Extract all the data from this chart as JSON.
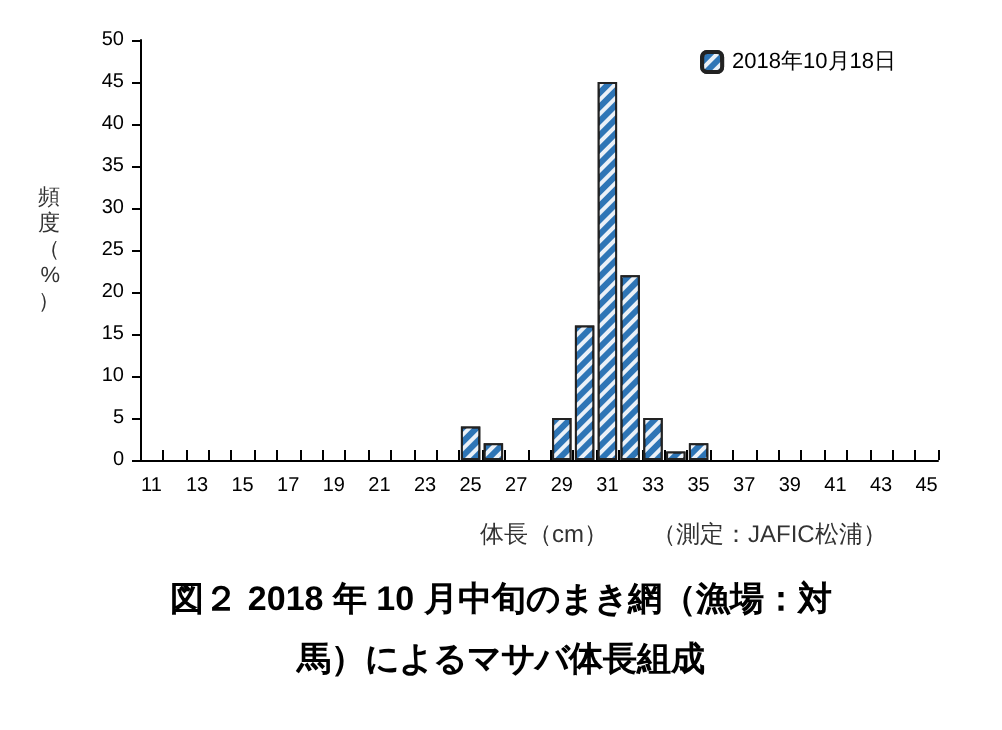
{
  "chart_data": {
    "type": "bar",
    "title": "図２ 2018 年 10 月中旬のまき網（漁場：対馬）によるマサバ体長組成",
    "xlabel": "体長（cm）",
    "ylabel": "頻度（%）",
    "annotations": [
      "（測定：JAFIC松浦）"
    ],
    "categories": [
      "11",
      null,
      "13",
      null,
      "15",
      null,
      "17",
      null,
      "19",
      null,
      "21",
      null,
      "23",
      null,
      "25",
      null,
      "27",
      null,
      "29",
      null,
      "31",
      null,
      "33",
      null,
      "35",
      null,
      "37",
      null,
      "39",
      null,
      "41",
      null,
      "43",
      null,
      "45"
    ],
    "series": [
      {
        "name": "2018年10月18日",
        "color": "#2e75b6",
        "values": [
          null,
          null,
          null,
          null,
          null,
          null,
          null,
          null,
          null,
          null,
          null,
          null,
          null,
          null,
          4,
          2,
          null,
          null,
          5,
          16,
          45,
          22,
          5,
          1,
          2,
          null,
          null,
          null,
          null,
          null,
          null,
          null,
          null,
          null,
          null
        ]
      }
    ],
    "ylim": [
      0,
      50
    ],
    "yticks": [
      0,
      5,
      10,
      15,
      20,
      25,
      30,
      35,
      40,
      45,
      50
    ],
    "grid": false,
    "legend": "top right"
  }
}
